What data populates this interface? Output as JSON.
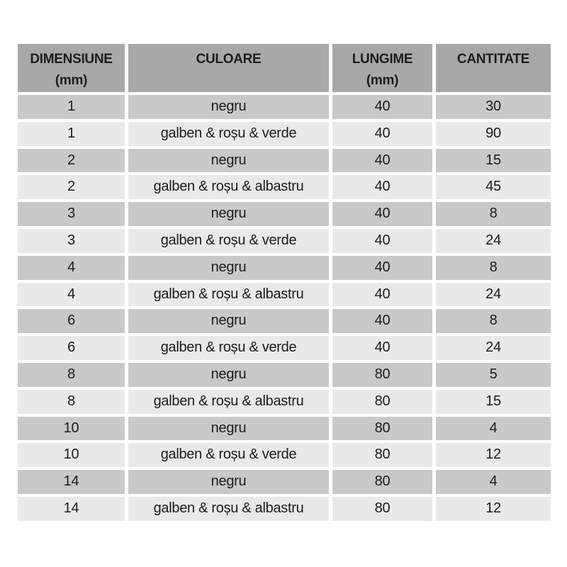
{
  "colors": {
    "header_bg": "#a8a8a8",
    "row_odd_bg": "#c9c9c9",
    "row_even_bg": "#e9e9e9",
    "separator": "#ffffff",
    "page_bg": "#ffffff",
    "text": "#1c1c1c"
  },
  "header": {
    "cells": [
      {
        "line1": "DIMENSIUNE",
        "line2": "(mm)"
      },
      {
        "line1": "CULOARE",
        "line2": ""
      },
      {
        "line1": "LUNGIME",
        "line2": "(mm)"
      },
      {
        "line1": "CANTITATE",
        "line2": ""
      }
    ]
  },
  "chart_data": {
    "type": "table",
    "title": "",
    "columns": [
      "DIMENSIUNE (mm)",
      "CULOARE",
      "LUNGIME (mm)",
      "CANTITATE"
    ],
    "rows": [
      [
        "1",
        "negru",
        "40",
        "30"
      ],
      [
        "1",
        "galben & roșu & verde",
        "40",
        "90"
      ],
      [
        "2",
        "negru",
        "40",
        "15"
      ],
      [
        "2",
        "galben & roșu & albastru",
        "40",
        "45"
      ],
      [
        "3",
        "negru",
        "40",
        "8"
      ],
      [
        "3",
        "galben & roșu & verde",
        "40",
        "24"
      ],
      [
        "4",
        "negru",
        "40",
        "8"
      ],
      [
        "4",
        "galben & roșu & albastru",
        "40",
        "24"
      ],
      [
        "6",
        "negru",
        "40",
        "8"
      ],
      [
        "6",
        "galben & roșu & verde",
        "40",
        "24"
      ],
      [
        "8",
        "negru",
        "80",
        "5"
      ],
      [
        "8",
        "galben & roșu & albastru",
        "80",
        "15"
      ],
      [
        "10",
        "negru",
        "80",
        "4"
      ],
      [
        "10",
        "galben & roșu & verde",
        "80",
        "12"
      ],
      [
        "14",
        "negru",
        "80",
        "4"
      ],
      [
        "14",
        "galben & roșu & albastru",
        "80",
        "12"
      ]
    ]
  }
}
